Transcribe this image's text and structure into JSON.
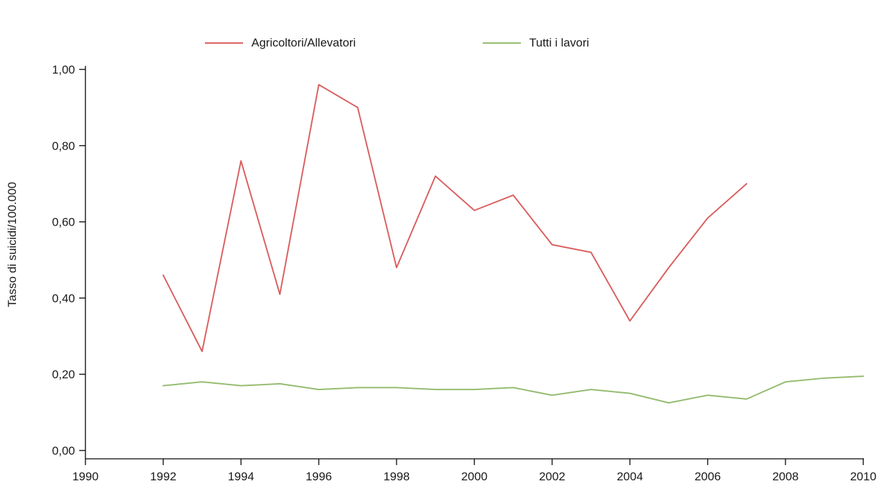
{
  "legend": {
    "items": [
      {
        "label": "Agricoltori/Allevatori",
        "color": "#d9605f"
      },
      {
        "label": "Tutti i lavori",
        "color": "#94bb6f"
      }
    ]
  },
  "axes": {
    "y_title": "Tasso di suicidi/100.000",
    "y_ticks": [
      {
        "value": 0.0,
        "label": "0,00"
      },
      {
        "value": 0.2,
        "label": "0,20"
      },
      {
        "value": 0.4,
        "label": "0,40"
      },
      {
        "value": 0.6,
        "label": "0,60"
      },
      {
        "value": 0.8,
        "label": "0,80"
      },
      {
        "value": 1.0,
        "label": "1,00"
      }
    ],
    "x_ticks": [
      {
        "value": 1990,
        "label": "1990"
      },
      {
        "value": 1992,
        "label": "1992"
      },
      {
        "value": 1994,
        "label": "1994"
      },
      {
        "value": 1996,
        "label": "1996"
      },
      {
        "value": 1998,
        "label": "1998"
      },
      {
        "value": 2000,
        "label": "2000"
      },
      {
        "value": 2002,
        "label": "2002"
      },
      {
        "value": 2004,
        "label": "2004"
      },
      {
        "value": 2006,
        "label": "2006"
      },
      {
        "value": 2008,
        "label": "2008"
      },
      {
        "value": 2010,
        "label": "2010"
      }
    ]
  },
  "chart_data": {
    "type": "line",
    "title": "",
    "xlabel": "",
    "ylabel": "Tasso di suicidi/100.000",
    "xlim": [
      1990,
      2010
    ],
    "ylim": [
      0.0,
      1.0
    ],
    "grid": false,
    "legend_position": "top",
    "series": [
      {
        "name": "Agricoltori/Allevatori",
        "color": "#d9605f",
        "x": [
          1992,
          1993,
          1994,
          1995,
          1996,
          1997,
          1998,
          1999,
          2000,
          2001,
          2002,
          2003,
          2004,
          2005,
          2006,
          2007
        ],
        "values": [
          0.46,
          0.26,
          0.76,
          0.41,
          0.96,
          0.9,
          0.48,
          0.72,
          0.63,
          0.67,
          0.54,
          0.52,
          0.34,
          0.48,
          0.61,
          0.7
        ]
      },
      {
        "name": "Tutti i lavori",
        "color": "#94bb6f",
        "x": [
          1992,
          1993,
          1994,
          1995,
          1996,
          1997,
          1998,
          1999,
          2000,
          2001,
          2002,
          2003,
          2004,
          2005,
          2006,
          2007,
          2008,
          2009,
          2010
        ],
        "values": [
          0.17,
          0.18,
          0.17,
          0.175,
          0.16,
          0.165,
          0.165,
          0.16,
          0.16,
          0.165,
          0.145,
          0.16,
          0.15,
          0.125,
          0.145,
          0.135,
          0.18,
          0.19,
          0.195
        ]
      }
    ]
  }
}
